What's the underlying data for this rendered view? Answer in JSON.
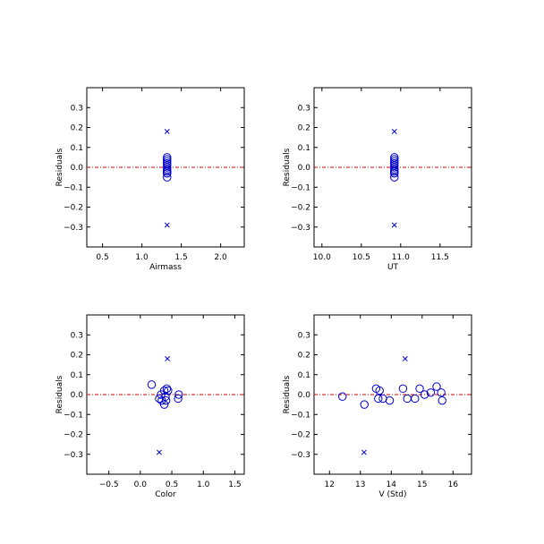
{
  "colors": {
    "point": "#0000cc",
    "zero_line": "#cc0000",
    "axis": "#000000"
  },
  "chart_data": [
    {
      "type": "scatter",
      "xlabel": "Airmass",
      "ylabel": "Residuals",
      "xlim": [
        0.3,
        2.3
      ],
      "ylim": [
        -0.4,
        0.4
      ],
      "xticks": [
        0.5,
        1.0,
        1.5,
        2.0
      ],
      "yticks": [
        -0.3,
        -0.2,
        -0.1,
        0.0,
        0.1,
        0.2,
        0.3
      ],
      "xtick_labels": [
        "0.5",
        "1.0",
        "1.5",
        "2.0"
      ],
      "ytick_labels": [
        "−0.3",
        "−0.2",
        "−0.1",
        "0.0",
        "0.1",
        "0.2",
        "0.3"
      ],
      "zero_line": 0.0,
      "points": [
        {
          "x": 1.32,
          "y": 0.05
        },
        {
          "x": 1.32,
          "y": 0.04
        },
        {
          "x": 1.32,
          "y": 0.03
        },
        {
          "x": 1.32,
          "y": 0.02
        },
        {
          "x": 1.32,
          "y": 0.01
        },
        {
          "x": 1.32,
          "y": 0.0
        },
        {
          "x": 1.32,
          "y": -0.01
        },
        {
          "x": 1.32,
          "y": -0.02
        },
        {
          "x": 1.32,
          "y": -0.02
        },
        {
          "x": 1.32,
          "y": -0.03
        },
        {
          "x": 1.32,
          "y": -0.03
        },
        {
          "x": 1.32,
          "y": -0.05
        }
      ],
      "outliers": [
        {
          "x": 1.32,
          "y": 0.18
        },
        {
          "x": 1.32,
          "y": -0.29
        }
      ]
    },
    {
      "type": "scatter",
      "xlabel": "UT",
      "ylabel": "Residuals",
      "xlim": [
        9.9,
        11.9
      ],
      "ylim": [
        -0.4,
        0.4
      ],
      "xticks": [
        10.0,
        10.5,
        11.0,
        11.5
      ],
      "yticks": [
        -0.3,
        -0.2,
        -0.1,
        0.0,
        0.1,
        0.2,
        0.3
      ],
      "xtick_labels": [
        "10.0",
        "10.5",
        "11.0",
        "11.5"
      ],
      "ytick_labels": [
        "−0.3",
        "−0.2",
        "−0.1",
        "0.0",
        "0.1",
        "0.2",
        "0.3"
      ],
      "zero_line": 0.0,
      "points": [
        {
          "x": 10.92,
          "y": 0.05
        },
        {
          "x": 10.92,
          "y": 0.04
        },
        {
          "x": 10.92,
          "y": 0.03
        },
        {
          "x": 10.92,
          "y": 0.02
        },
        {
          "x": 10.92,
          "y": 0.01
        },
        {
          "x": 10.92,
          "y": 0.0
        },
        {
          "x": 10.92,
          "y": -0.01
        },
        {
          "x": 10.92,
          "y": -0.02
        },
        {
          "x": 10.92,
          "y": -0.02
        },
        {
          "x": 10.92,
          "y": -0.03
        },
        {
          "x": 10.92,
          "y": -0.03
        },
        {
          "x": 10.92,
          "y": -0.05
        }
      ],
      "outliers": [
        {
          "x": 10.92,
          "y": 0.18
        },
        {
          "x": 10.92,
          "y": -0.29
        }
      ]
    },
    {
      "type": "scatter",
      "xlabel": "Color",
      "ylabel": "Residuals",
      "xlim": [
        -0.85,
        1.65
      ],
      "ylim": [
        -0.4,
        0.4
      ],
      "xticks": [
        -0.5,
        0.0,
        0.5,
        1.0,
        1.5
      ],
      "yticks": [
        -0.3,
        -0.2,
        -0.1,
        0.0,
        0.1,
        0.2,
        0.3
      ],
      "xtick_labels": [
        "−0.5",
        "0.0",
        "0.5",
        "1.0",
        "1.5"
      ],
      "ytick_labels": [
        "−0.3",
        "−0.2",
        "−0.1",
        "0.0",
        "0.1",
        "0.2",
        "0.3"
      ],
      "zero_line": 0.0,
      "points": [
        {
          "x": 0.18,
          "y": 0.05
        },
        {
          "x": 0.42,
          "y": 0.03
        },
        {
          "x": 0.38,
          "y": 0.02
        },
        {
          "x": 0.44,
          "y": 0.02
        },
        {
          "x": 0.33,
          "y": 0.0
        },
        {
          "x": 0.61,
          "y": 0.0
        },
        {
          "x": 0.4,
          "y": -0.01
        },
        {
          "x": 0.3,
          "y": -0.02
        },
        {
          "x": 0.6,
          "y": -0.02
        },
        {
          "x": 0.34,
          "y": -0.03
        },
        {
          "x": 0.41,
          "y": -0.03
        },
        {
          "x": 0.38,
          "y": -0.05
        }
      ],
      "outliers": [
        {
          "x": 0.43,
          "y": 0.18
        },
        {
          "x": 0.3,
          "y": -0.29
        }
      ]
    },
    {
      "type": "scatter",
      "xlabel": "V (Std)",
      "ylabel": "Residuals",
      "xlim": [
        11.5,
        16.6
      ],
      "ylim": [
        -0.4,
        0.4
      ],
      "xticks": [
        12,
        13,
        14,
        15,
        16
      ],
      "yticks": [
        -0.3,
        -0.2,
        -0.1,
        0.0,
        0.1,
        0.2,
        0.3
      ],
      "xtick_labels": [
        "12",
        "13",
        "14",
        "15",
        "16"
      ],
      "ytick_labels": [
        "−0.3",
        "−0.2",
        "−0.1",
        "0.0",
        "0.1",
        "0.2",
        "0.3"
      ],
      "zero_line": 0.0,
      "points": [
        {
          "x": 12.42,
          "y": -0.01
        },
        {
          "x": 13.13,
          "y": -0.05
        },
        {
          "x": 13.51,
          "y": 0.03
        },
        {
          "x": 13.62,
          "y": 0.02
        },
        {
          "x": 13.58,
          "y": -0.02
        },
        {
          "x": 13.73,
          "y": -0.02
        },
        {
          "x": 13.95,
          "y": -0.03
        },
        {
          "x": 14.38,
          "y": 0.03
        },
        {
          "x": 14.52,
          "y": -0.02
        },
        {
          "x": 14.77,
          "y": -0.02
        },
        {
          "x": 14.92,
          "y": 0.03
        },
        {
          "x": 15.08,
          "y": 0.0
        },
        {
          "x": 15.28,
          "y": 0.01
        },
        {
          "x": 15.47,
          "y": 0.04
        },
        {
          "x": 15.62,
          "y": 0.01
        },
        {
          "x": 15.65,
          "y": -0.03
        }
      ],
      "outliers": [
        {
          "x": 14.45,
          "y": 0.18
        },
        {
          "x": 13.12,
          "y": -0.29
        }
      ]
    }
  ]
}
